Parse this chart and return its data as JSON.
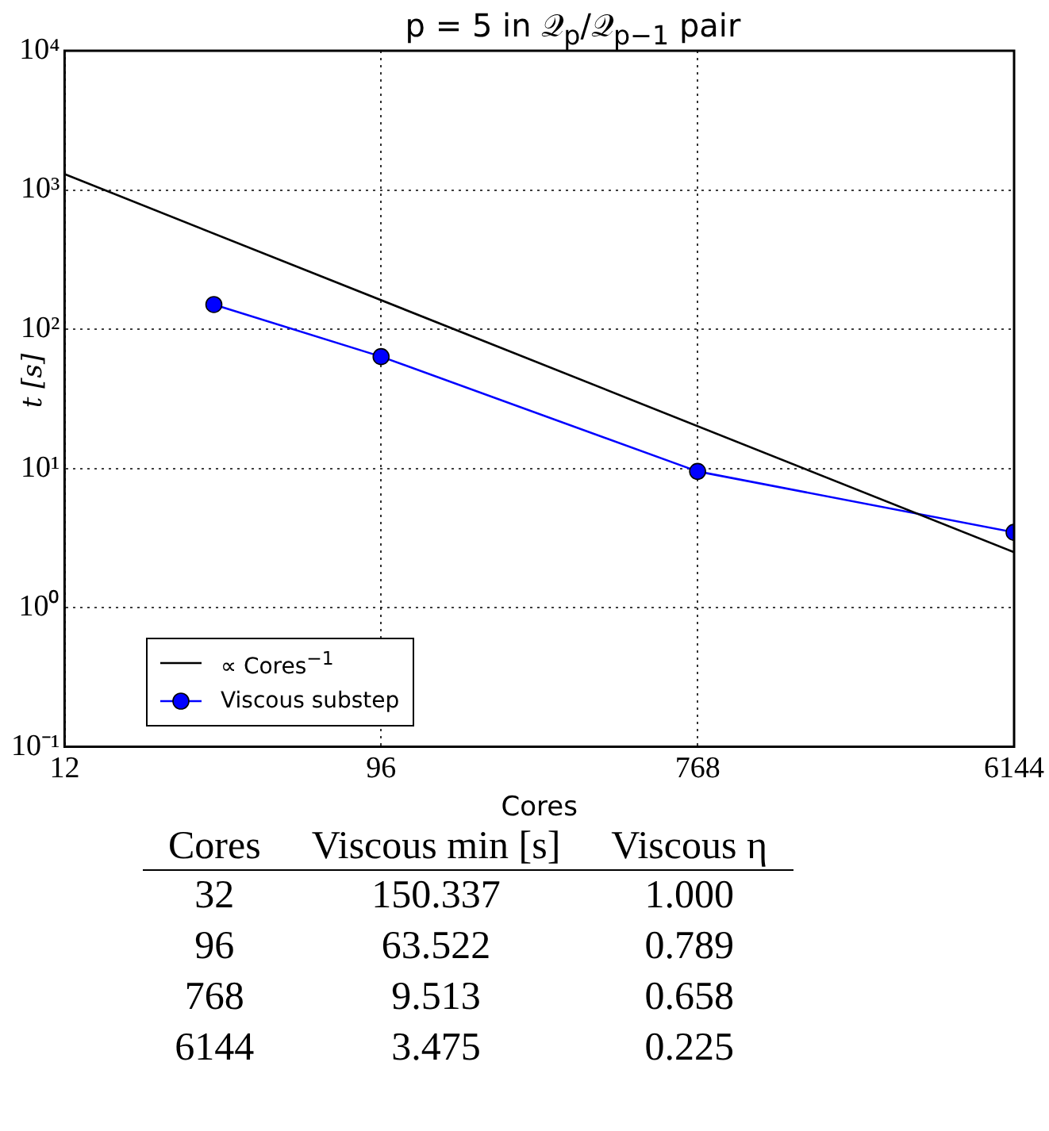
{
  "chart_data": [
    {
      "type": "line",
      "title": "p = 5 in 𝒬$_{p}$/𝒬$_{p−1}$ pair",
      "xlabel": "Cores",
      "ylabel": "t [s]",
      "log": "xy",
      "xlim": [
        12,
        6144
      ],
      "xticks": [
        12,
        96,
        768,
        6144
      ],
      "ylim": [
        0.1,
        10000
      ],
      "yticks": [
        {
          "value": 0.1,
          "label": "10⁻¹"
        },
        {
          "value": 1,
          "label": "10⁰"
        },
        {
          "value": 10,
          "label": "10¹"
        },
        {
          "value": 100,
          "label": "10²"
        },
        {
          "value": 1000,
          "label": "10³"
        },
        {
          "value": 10000,
          "label": "10⁴"
        }
      ],
      "grid": true,
      "legend": "bottom left",
      "series": [
        {
          "name": "∝ Cores$^{−1}$",
          "color": "#000000",
          "x": [
            12,
            6144
          ],
          "values": [
            1300,
            2.5
          ],
          "marker": "none"
        },
        {
          "name": "Viscous substep",
          "color": "#0000ff",
          "x": [
            32,
            96,
            768,
            6144
          ],
          "values": [
            150.337,
            63.522,
            9.513,
            3.475
          ],
          "marker": "circle"
        }
      ]
    },
    {
      "type": "other",
      "xlabel": "Cores",
      "categories": [
        "32",
        "96",
        "768",
        "6144"
      ],
      "series": [
        {
          "name": "Viscous min [s]",
          "values": [
            150.337,
            63.522,
            9.513,
            3.475
          ],
          "value_labels": [
            "150.337",
            "63.522",
            "9.513",
            "3.475"
          ]
        },
        {
          "name": "Viscous η",
          "values": [
            1.0,
            0.789,
            0.658,
            0.225
          ],
          "value_labels": [
            "1.000",
            "0.789",
            "0.658",
            "0.225"
          ]
        }
      ],
      "data_labels": true
    }
  ]
}
